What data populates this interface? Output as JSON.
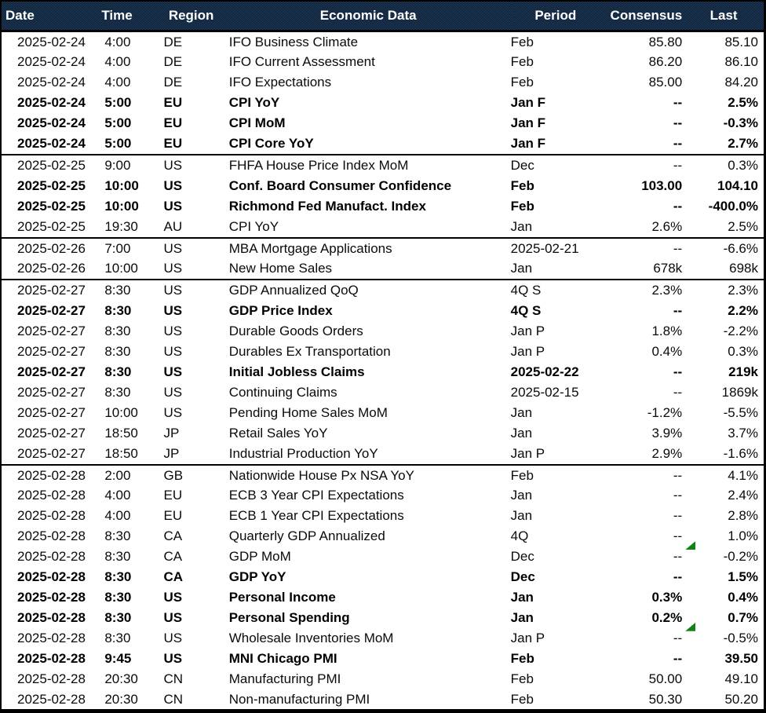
{
  "colors": {
    "header_bg_dark": "#0c1929",
    "header_bg_light": "#1f3f62",
    "header_text": "#ffffff",
    "body_text": "#0a0a0a",
    "border": "#000000",
    "flag_green": "#128212"
  },
  "header": {
    "columns": [
      {
        "key": "date",
        "label": "Date"
      },
      {
        "key": "time",
        "label": "Time"
      },
      {
        "key": "region",
        "label": "Region"
      },
      {
        "key": "event",
        "label": "Economic Data"
      },
      {
        "key": "period",
        "label": "Period"
      },
      {
        "key": "consensus",
        "label": "Consensus"
      },
      {
        "key": "last",
        "label": "Last"
      }
    ]
  },
  "table": {
    "groups": [
      {
        "date": "2025-02-24",
        "rows": [
          {
            "time": "4:00",
            "region": "DE",
            "event": "IFO Business Climate",
            "period": "Feb",
            "consensus": "85.80",
            "last": "85.10",
            "bold": false,
            "flag": false
          },
          {
            "time": "4:00",
            "region": "DE",
            "event": "IFO Current Assessment",
            "period": "Feb",
            "consensus": "86.20",
            "last": "86.10",
            "bold": false,
            "flag": false
          },
          {
            "time": "4:00",
            "region": "DE",
            "event": "IFO Expectations",
            "period": "Feb",
            "consensus": "85.00",
            "last": "84.20",
            "bold": false,
            "flag": false
          },
          {
            "time": "5:00",
            "region": "EU",
            "event": "CPI YoY",
            "period": "Jan F",
            "consensus": "--",
            "last": "2.5%",
            "bold": true,
            "flag": false
          },
          {
            "time": "5:00",
            "region": "EU",
            "event": "CPI MoM",
            "period": "Jan F",
            "consensus": "--",
            "last": "-0.3%",
            "bold": true,
            "flag": false
          },
          {
            "time": "5:00",
            "region": "EU",
            "event": "CPI Core YoY",
            "period": "Jan F",
            "consensus": "--",
            "last": "2.7%",
            "bold": true,
            "flag": false
          }
        ]
      },
      {
        "date": "2025-02-25",
        "rows": [
          {
            "time": "9:00",
            "region": "US",
            "event": "FHFA House Price Index MoM",
            "period": "Dec",
            "consensus": "--",
            "last": "0.3%",
            "bold": false,
            "flag": false
          },
          {
            "time": "10:00",
            "region": "US",
            "event": "Conf. Board Consumer Confidence",
            "period": "Feb",
            "consensus": "103.00",
            "last": "104.10",
            "bold": true,
            "flag": false
          },
          {
            "time": "10:00",
            "region": "US",
            "event": "Richmond Fed Manufact. Index",
            "period": "Feb",
            "consensus": "--",
            "last": "-400.0%",
            "bold": true,
            "flag": false
          },
          {
            "time": "19:30",
            "region": "AU",
            "event": "CPI YoY",
            "period": "Jan",
            "consensus": "2.6%",
            "last": "2.5%",
            "bold": false,
            "flag": false
          }
        ]
      },
      {
        "date": "2025-02-26",
        "rows": [
          {
            "time": "7:00",
            "region": "US",
            "event": "MBA Mortgage Applications",
            "period": "2025-02-21",
            "consensus": "--",
            "last": "-6.6%",
            "bold": false,
            "flag": false
          },
          {
            "time": "10:00",
            "region": "US",
            "event": "New Home Sales",
            "period": "Jan",
            "consensus": "678k",
            "last": "698k",
            "bold": false,
            "flag": false
          }
        ]
      },
      {
        "date": "2025-02-27",
        "rows": [
          {
            "time": "8:30",
            "region": "US",
            "event": "GDP Annualized QoQ",
            "period": "4Q S",
            "consensus": "2.3%",
            "last": "2.3%",
            "bold": false,
            "flag": false
          },
          {
            "time": "8:30",
            "region": "US",
            "event": "GDP Price Index",
            "period": "4Q S",
            "consensus": "--",
            "last": "2.2%",
            "bold": true,
            "flag": false
          },
          {
            "time": "8:30",
            "region": "US",
            "event": "Durable Goods Orders",
            "period": "Jan P",
            "consensus": "1.8%",
            "last": "-2.2%",
            "bold": false,
            "flag": false
          },
          {
            "time": "8:30",
            "region": "US",
            "event": "Durables Ex Transportation",
            "period": "Jan P",
            "consensus": "0.4%",
            "last": "0.3%",
            "bold": false,
            "flag": false
          },
          {
            "time": "8:30",
            "region": "US",
            "event": "Initial Jobless Claims",
            "period": "2025-02-22",
            "consensus": "--",
            "last": "219k",
            "bold": true,
            "flag": false
          },
          {
            "time": "8:30",
            "region": "US",
            "event": "Continuing Claims",
            "period": "2025-02-15",
            "consensus": "--",
            "last": "1869k",
            "bold": false,
            "flag": false
          },
          {
            "time": "10:00",
            "region": "US",
            "event": "Pending Home Sales MoM",
            "period": "Jan",
            "consensus": "-1.2%",
            "last": "-5.5%",
            "bold": false,
            "flag": false
          },
          {
            "time": "18:50",
            "region": "JP",
            "event": "Retail Sales YoY",
            "period": "Jan",
            "consensus": "3.9%",
            "last": "3.7%",
            "bold": false,
            "flag": false
          },
          {
            "time": "18:50",
            "region": "JP",
            "event": "Industrial Production YoY",
            "period": "Jan P",
            "consensus": "2.9%",
            "last": "-1.6%",
            "bold": false,
            "flag": false
          }
        ]
      },
      {
        "date": "2025-02-28",
        "rows": [
          {
            "time": "2:00",
            "region": "GB",
            "event": "Nationwide House Px NSA YoY",
            "period": "Feb",
            "consensus": "--",
            "last": "4.1%",
            "bold": false,
            "flag": false
          },
          {
            "time": "4:00",
            "region": "EU",
            "event": "ECB 3 Year CPI Expectations",
            "period": "Jan",
            "consensus": "--",
            "last": "2.4%",
            "bold": false,
            "flag": false
          },
          {
            "time": "4:00",
            "region": "EU",
            "event": "ECB 1 Year CPI Expectations",
            "period": "Jan",
            "consensus": "--",
            "last": "2.8%",
            "bold": false,
            "flag": false
          },
          {
            "time": "8:30",
            "region": "CA",
            "event": "Quarterly GDP Annualized",
            "period": "4Q",
            "consensus": "--",
            "last": "1.0%",
            "bold": false,
            "flag": false
          },
          {
            "time": "8:30",
            "region": "CA",
            "event": "GDP MoM",
            "period": "Dec",
            "consensus": "--",
            "last": "-0.2%",
            "bold": false,
            "flag": true
          },
          {
            "time": "8:30",
            "region": "CA",
            "event": "GDP YoY",
            "period": "Dec",
            "consensus": "--",
            "last": "1.5%",
            "bold": true,
            "flag": false
          },
          {
            "time": "8:30",
            "region": "US",
            "event": "Personal Income",
            "period": "Jan",
            "consensus": "0.3%",
            "last": "0.4%",
            "bold": true,
            "flag": false
          },
          {
            "time": "8:30",
            "region": "US",
            "event": "Personal Spending",
            "period": "Jan",
            "consensus": "0.2%",
            "last": "0.7%",
            "bold": true,
            "flag": false
          },
          {
            "time": "8:30",
            "region": "US",
            "event": "Wholesale Inventories MoM",
            "period": "Jan P",
            "consensus": "--",
            "last": "-0.5%",
            "bold": false,
            "flag": true
          },
          {
            "time": "9:45",
            "region": "US",
            "event": "MNI Chicago PMI",
            "period": "Feb",
            "consensus": "--",
            "last": "39.50",
            "bold": true,
            "flag": false
          },
          {
            "time": "20:30",
            "region": "CN",
            "event": "Manufacturing PMI",
            "period": "Feb",
            "consensus": "50.00",
            "last": "49.10",
            "bold": false,
            "flag": false
          },
          {
            "time": "20:30",
            "region": "CN",
            "event": "Non-manufacturing PMI",
            "period": "Feb",
            "consensus": "50.30",
            "last": "50.20",
            "bold": false,
            "flag": false
          }
        ]
      }
    ]
  }
}
